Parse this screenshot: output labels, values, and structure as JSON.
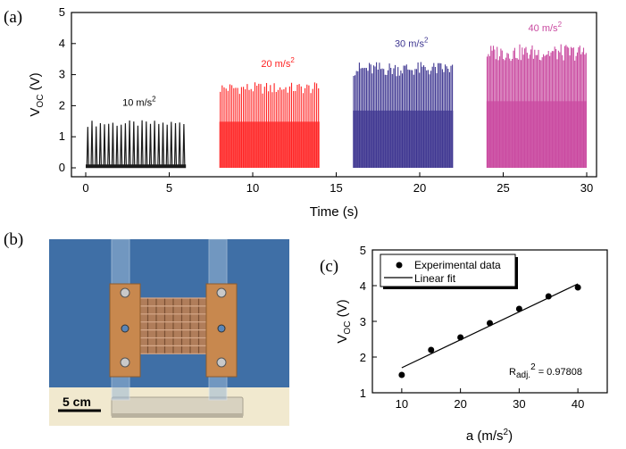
{
  "panels": {
    "a": "(a)",
    "b": "(b)",
    "c": "(c)"
  },
  "colors": {
    "s10": "#1a1a1a",
    "s20": "#ff2020",
    "s30": "#3d3590",
    "s40": "#c94aa0",
    "photo_bg": "#3f6fa6",
    "copper": "#c8884e",
    "table": "#f1e9cf"
  },
  "photo": {
    "scale_label": "5 cm",
    "icon": "photograph-of-device"
  },
  "chart_data": [
    {
      "id": "a",
      "type": "line",
      "xlabel": "Time (s)",
      "ylabel_main": "V",
      "ylabel_sub": "OC",
      "ylabel_unit": " (V)",
      "xlim": [
        0,
        30
      ],
      "ylim": [
        0,
        5
      ],
      "xticks": [
        0,
        5,
        10,
        15,
        20,
        25,
        30
      ],
      "yticks": [
        0,
        1,
        2,
        3,
        4,
        5
      ],
      "series": [
        {
          "name": "10 m/s2",
          "label": "10 m/s",
          "sup": "2",
          "x_range": [
            0,
            6
          ],
          "peak": 1.5,
          "baseline": 0.05,
          "pulses": 24,
          "label_x": 2.2,
          "label_y": 2.0,
          "color_key": "s10"
        },
        {
          "name": "20 m/s2",
          "label": "20 m/s",
          "sup": "2",
          "x_range": [
            8,
            14
          ],
          "peak": 2.7,
          "baseline": 0.0,
          "pulses": 52,
          "label_x": 10.5,
          "label_y": 3.25,
          "color_key": "s20"
        },
        {
          "name": "30 m/s2",
          "label": "30 m/s",
          "sup": "2",
          "x_range": [
            16,
            22
          ],
          "peak": 3.35,
          "baseline": 0.0,
          "pulses": 70,
          "label_x": 18.5,
          "label_y": 3.9,
          "color_key": "s30"
        },
        {
          "name": "40 m/s2",
          "label": "40 m/s",
          "sup": "2",
          "x_range": [
            24,
            30
          ],
          "peak": 3.9,
          "baseline": 0.0,
          "pulses": 80,
          "label_x": 26.5,
          "label_y": 4.4,
          "color_key": "s40"
        }
      ]
    },
    {
      "id": "c",
      "type": "scatter",
      "xlabel_main": "a (m/s",
      "xlabel_sup": "2",
      "xlabel_end": ")",
      "ylabel_main": "V",
      "ylabel_sub": "OC",
      "ylabel_unit": " (V)",
      "xlim": [
        5,
        45
      ],
      "ylim": [
        1,
        5
      ],
      "xticks": [
        10,
        20,
        30,
        40
      ],
      "yticks": [
        1,
        2,
        3,
        4,
        5
      ],
      "points": {
        "x": [
          10,
          15,
          20,
          25,
          30,
          35,
          40
        ],
        "y": [
          1.5,
          2.2,
          2.55,
          2.95,
          3.35,
          3.7,
          3.95
        ]
      },
      "fit": {
        "x": [
          10,
          40
        ],
        "y": [
          1.7,
          4.05
        ]
      },
      "legend": {
        "points": "Experimental data",
        "line": "Linear fit"
      },
      "annotation": {
        "main": "R",
        "sub": "adj.",
        "sup": "2",
        "rest": " = 0.97808"
      }
    }
  ]
}
